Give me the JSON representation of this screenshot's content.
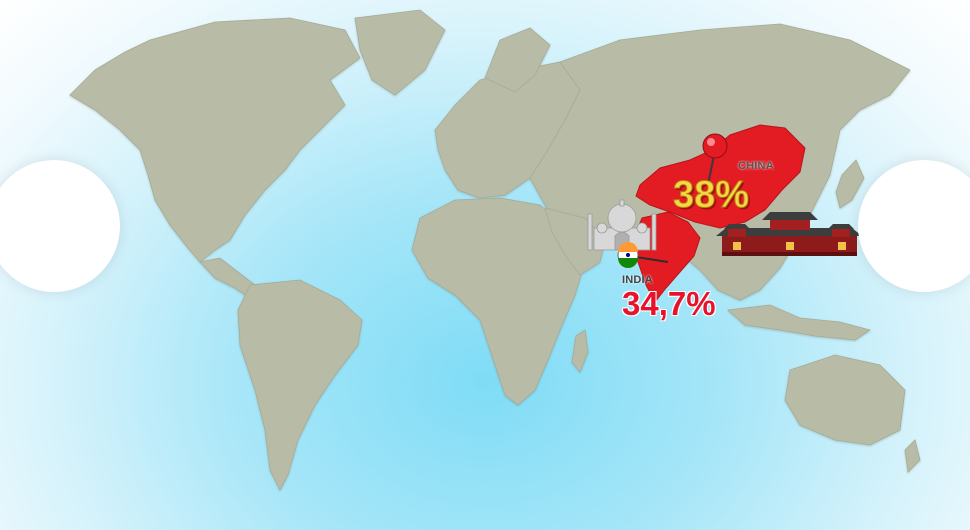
{
  "map": {
    "colors": {
      "ocean_center": "#7fdcf6",
      "land": "#b8bca6",
      "highlight": "#e31b23"
    },
    "markers": [
      {
        "country": "CHINA",
        "value": "38%",
        "pin_color": "#e31b23",
        "value_color": "#f7d74a",
        "landmark": "palace-gate-icon"
      },
      {
        "country": "INDIA",
        "value": "34,7%",
        "value_color": "#e8132a",
        "landmark": "taj-mahal-icon",
        "flag": "india-flag-icon"
      }
    ]
  },
  "navigation": {
    "left_icon": "previous-circle",
    "right_icon": "next-circle"
  }
}
